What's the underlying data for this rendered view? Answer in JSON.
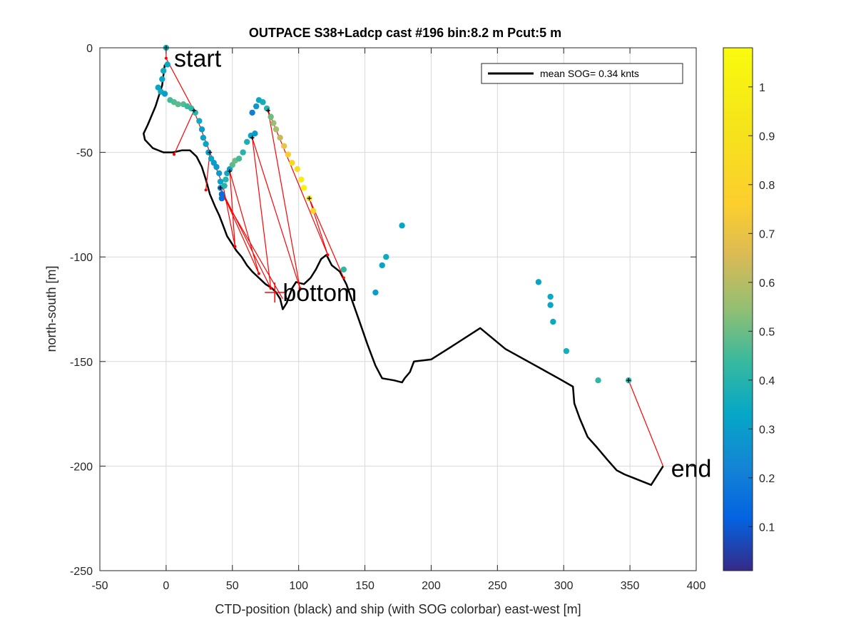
{
  "chart_data": {
    "type": "scatter",
    "title": "OUTPACE S38+Ladcp cast #196 bin:8.2 m  Pcut:5 m",
    "xlabel": "CTD-position (black) and ship (with SOG colorbar) east-west [m]",
    "ylabel": "north-south [m]",
    "xlim": [
      -50,
      400
    ],
    "ylim": [
      -250,
      0
    ],
    "xticks": [
      "-50",
      "0",
      "50",
      "100",
      "150",
      "200",
      "250",
      "300",
      "350",
      "400"
    ],
    "yticks": [
      "0",
      "-50",
      "-100",
      "-150",
      "-200",
      "-250"
    ],
    "grid": true,
    "legend": {
      "position": "top-right",
      "label": "mean SOG=  0.34 knts",
      "color": "#000000"
    },
    "annotations": [
      {
        "text": "start",
        "x": 6,
        "y": -5
      },
      {
        "text": "bottom",
        "x": 88,
        "y": -117
      },
      {
        "text": "end",
        "x": 381,
        "y": -201
      }
    ],
    "bottom_marker": {
      "x": 82,
      "y": -117,
      "color": "#ff0000"
    },
    "colorbar": {
      "range": [
        0.01,
        1.08
      ],
      "ticks": [
        "0.1",
        "0.2",
        "0.3",
        "0.4",
        "0.5",
        "0.6",
        "0.7",
        "0.8",
        "0.9",
        "1"
      ],
      "colormap": "parula"
    },
    "ctd_track": {
      "color": "#000000",
      "points": [
        [
          -1,
          -8
        ],
        [
          -3,
          -18
        ],
        [
          -8,
          -28
        ],
        [
          -14,
          -37
        ],
        [
          -17,
          -41
        ],
        [
          -16,
          -44
        ],
        [
          -10,
          -48
        ],
        [
          -2,
          -50
        ],
        [
          5,
          -50
        ],
        [
          12,
          -49
        ],
        [
          18,
          -49
        ],
        [
          23,
          -52
        ],
        [
          27,
          -57
        ],
        [
          30,
          -63
        ],
        [
          33,
          -70
        ],
        [
          37,
          -76
        ],
        [
          40,
          -80
        ],
        [
          43,
          -85
        ],
        [
          46,
          -90
        ],
        [
          50,
          -94
        ],
        [
          53,
          -97
        ],
        [
          57,
          -100
        ],
        [
          61,
          -104
        ],
        [
          65,
          -107
        ],
        [
          70,
          -110
        ],
        [
          75,
          -113
        ],
        [
          80,
          -115
        ],
        [
          83,
          -117
        ],
        [
          86,
          -120
        ],
        [
          88,
          -125
        ],
        [
          91,
          -122
        ],
        [
          95,
          -115
        ],
        [
          98,
          -112
        ],
        [
          104,
          -113
        ],
        [
          109,
          -110
        ],
        [
          113,
          -106
        ],
        [
          117,
          -101
        ],
        [
          121,
          -99
        ],
        [
          125,
          -104
        ],
        [
          131,
          -107
        ],
        [
          136,
          -113
        ],
        [
          141,
          -122
        ],
        [
          146,
          -131
        ],
        [
          152,
          -142
        ],
        [
          158,
          -152
        ],
        [
          163,
          -158
        ],
        [
          172,
          -159
        ],
        [
          178,
          -160
        ],
        [
          180,
          -158
        ],
        [
          184,
          -155
        ],
        [
          187,
          -150
        ],
        [
          200,
          -149
        ],
        [
          215,
          -143
        ],
        [
          237,
          -134
        ],
        [
          256,
          -144
        ],
        [
          276,
          -151
        ],
        [
          296,
          -158
        ],
        [
          307,
          -162
        ],
        [
          308,
          -170
        ],
        [
          312,
          -177
        ],
        [
          318,
          -186
        ],
        [
          325,
          -191
        ],
        [
          333,
          -197
        ],
        [
          340,
          -202
        ],
        [
          346,
          -204
        ],
        [
          366,
          -209
        ],
        [
          375,
          -200
        ]
      ]
    },
    "ship_track": {
      "color": "#ff0000",
      "points": [
        [
          0,
          0
        ],
        [
          0,
          -5
        ],
        [
          21,
          -30
        ],
        [
          6,
          -51
        ],
        [
          21,
          -30
        ],
        [
          33,
          -50
        ],
        [
          30,
          -68
        ],
        [
          33,
          -50
        ],
        [
          43,
          -66
        ],
        [
          52,
          -95
        ],
        [
          48,
          -59
        ],
        [
          70,
          -108
        ],
        [
          41,
          -67
        ],
        [
          79,
          -115
        ],
        [
          65,
          -43
        ],
        [
          101,
          -115
        ],
        [
          77,
          -30
        ],
        [
          122,
          -99
        ],
        [
          108,
          -72
        ],
        [
          134,
          -110
        ]
      ],
      "extra_segments": [
        [
          [
            44,
            -72
          ],
          [
            88,
            -120
          ]
        ],
        [
          [
            349,
            -159
          ],
          [
            375,
            -200
          ]
        ]
      ]
    },
    "sog_points": [
      {
        "x": 0,
        "y": 0,
        "v": 0.36
      },
      {
        "x": 1,
        "y": -8,
        "v": 0.34
      },
      {
        "x": -2,
        "y": -11,
        "v": 0.35
      },
      {
        "x": -3,
        "y": -15,
        "v": 0.33
      },
      {
        "x": -6,
        "y": -19,
        "v": 0.33
      },
      {
        "x": -4,
        "y": -21,
        "v": 0.35
      },
      {
        "x": -1,
        "y": -22,
        "v": 0.3
      },
      {
        "x": 3,
        "y": -25,
        "v": 0.45
      },
      {
        "x": 6,
        "y": -26,
        "v": 0.47
      },
      {
        "x": 9,
        "y": -27,
        "v": 0.48
      },
      {
        "x": 13,
        "y": -27,
        "v": 0.47
      },
      {
        "x": 16,
        "y": -28,
        "v": 0.44
      },
      {
        "x": 19,
        "y": -29,
        "v": 0.42
      },
      {
        "x": 22,
        "y": -31,
        "v": 0.41
      },
      {
        "x": 25,
        "y": -35,
        "v": 0.35
      },
      {
        "x": 27,
        "y": -39,
        "v": 0.3
      },
      {
        "x": 28,
        "y": -43,
        "v": 0.32
      },
      {
        "x": 30,
        "y": -46,
        "v": 0.33
      },
      {
        "x": 32,
        "y": -50,
        "v": 0.3
      },
      {
        "x": 34,
        "y": -53,
        "v": 0.33
      },
      {
        "x": 36,
        "y": -55,
        "v": 0.3
      },
      {
        "x": 38,
        "y": -57,
        "v": 0.28
      },
      {
        "x": 40,
        "y": -60,
        "v": 0.3
      },
      {
        "x": 41,
        "y": -64,
        "v": 0.33
      },
      {
        "x": 41,
        "y": -67,
        "v": 0.2
      },
      {
        "x": 42,
        "y": -70,
        "v": 0.15
      },
      {
        "x": 42,
        "y": -72,
        "v": 0.16
      },
      {
        "x": 44,
        "y": -66,
        "v": 0.4
      },
      {
        "x": 45,
        "y": -63,
        "v": 0.4
      },
      {
        "x": 46,
        "y": -60,
        "v": 0.35
      },
      {
        "x": 48,
        "y": -58,
        "v": 0.3
      },
      {
        "x": 50,
        "y": -56,
        "v": 0.48
      },
      {
        "x": 52,
        "y": -54,
        "v": 0.5
      },
      {
        "x": 55,
        "y": -53,
        "v": 0.45
      },
      {
        "x": 58,
        "y": -50,
        "v": 0.4
      },
      {
        "x": 61,
        "y": -45,
        "v": 0.38
      },
      {
        "x": 64,
        "y": -42,
        "v": 0.32
      },
      {
        "x": 65,
        "y": -31,
        "v": 0.2
      },
      {
        "x": 67,
        "y": -41,
        "v": 0.3
      },
      {
        "x": 68,
        "y": -28,
        "v": 0.28
      },
      {
        "x": 70,
        "y": -25,
        "v": 0.34
      },
      {
        "x": 73,
        "y": -26,
        "v": 0.36
      },
      {
        "x": 76,
        "y": -29,
        "v": 0.4
      },
      {
        "x": 79,
        "y": -33,
        "v": 0.5
      },
      {
        "x": 81,
        "y": -36,
        "v": 0.55
      },
      {
        "x": 83,
        "y": -39,
        "v": 0.58
      },
      {
        "x": 86,
        "y": -43,
        "v": 0.62
      },
      {
        "x": 89,
        "y": -47,
        "v": 0.7
      },
      {
        "x": 92,
        "y": -51,
        "v": 0.75
      },
      {
        "x": 95,
        "y": -55,
        "v": 0.82
      },
      {
        "x": 99,
        "y": -58,
        "v": 0.88
      },
      {
        "x": 102,
        "y": -63,
        "v": 0.98
      },
      {
        "x": 104,
        "y": -67,
        "v": 1.02
      },
      {
        "x": 108,
        "y": -72,
        "v": 0.92
      },
      {
        "x": 111,
        "y": -78,
        "v": 0.8
      },
      {
        "x": 134,
        "y": -106,
        "v": 0.42
      },
      {
        "x": 158,
        "y": -117,
        "v": 0.3
      },
      {
        "x": 163,
        "y": -104,
        "v": 0.32
      },
      {
        "x": 166,
        "y": -100,
        "v": 0.35
      },
      {
        "x": 178,
        "y": -85,
        "v": 0.33
      },
      {
        "x": 281,
        "y": -112,
        "v": 0.32
      },
      {
        "x": 290,
        "y": -119,
        "v": 0.34
      },
      {
        "x": 290,
        "y": -123,
        "v": 0.33
      },
      {
        "x": 292,
        "y": -131,
        "v": 0.34
      },
      {
        "x": 302,
        "y": -145,
        "v": 0.37
      },
      {
        "x": 326,
        "y": -159,
        "v": 0.42
      },
      {
        "x": 349,
        "y": -159,
        "v": 0.4
      }
    ],
    "marker_points": [
      [
        0,
        0
      ],
      [
        21,
        -30
      ],
      [
        33,
        -50
      ],
      [
        48,
        -59
      ],
      [
        41,
        -67
      ],
      [
        65,
        -43
      ],
      [
        77,
        -30
      ],
      [
        108,
        -72
      ],
      [
        349,
        -159
      ]
    ]
  }
}
